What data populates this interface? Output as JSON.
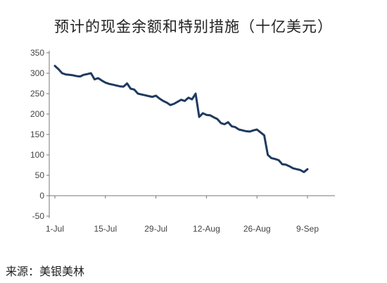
{
  "title": "预计的现金余额和特别措施（十亿美元）",
  "source": "来源：美银美林",
  "chart_data": {
    "type": "line",
    "title": "预计的现金余额和特别措施（十亿美元）",
    "xlabel": "",
    "ylabel": "",
    "x_tick_labels": [
      "1-Jul",
      "15-Jul",
      "29-Jul",
      "12-Aug",
      "26-Aug",
      "9-Sep"
    ],
    "y_ticks": [
      350,
      300,
      250,
      200,
      150,
      100,
      50,
      0,
      -50
    ],
    "ylim": [
      -50,
      350
    ],
    "grid": false,
    "legend": "none",
    "line_color": "#1f3a5f",
    "series": [
      {
        "name": "",
        "x": [
          "1-Jul",
          "2-Jul",
          "3-Jul",
          "4-Jul",
          "5-Jul",
          "6-Jul",
          "7-Jul",
          "8-Jul",
          "9-Jul",
          "10-Jul",
          "11-Jul",
          "12-Jul",
          "13-Jul",
          "14-Jul",
          "15-Jul",
          "16-Jul",
          "17-Jul",
          "18-Jul",
          "19-Jul",
          "20-Jul",
          "21-Jul",
          "22-Jul",
          "23-Jul",
          "24-Jul",
          "25-Jul",
          "26-Jul",
          "27-Jul",
          "28-Jul",
          "29-Jul",
          "30-Jul",
          "31-Jul",
          "1-Aug",
          "2-Aug",
          "3-Aug",
          "4-Aug",
          "5-Aug",
          "6-Aug",
          "7-Aug",
          "8-Aug",
          "9-Aug",
          "10-Aug",
          "11-Aug",
          "12-Aug",
          "13-Aug",
          "14-Aug",
          "15-Aug",
          "16-Aug",
          "17-Aug",
          "18-Aug",
          "19-Aug",
          "20-Aug",
          "21-Aug",
          "22-Aug",
          "23-Aug",
          "24-Aug",
          "25-Aug",
          "26-Aug",
          "27-Aug",
          "28-Aug",
          "29-Aug",
          "30-Aug",
          "31-Aug",
          "1-Sep",
          "2-Sep",
          "3-Sep",
          "4-Sep",
          "5-Sep",
          "6-Sep",
          "7-Sep",
          "8-Sep",
          "9-Sep"
        ],
        "values": [
          318,
          310,
          300,
          297,
          296,
          295,
          293,
          292,
          296,
          298,
          300,
          285,
          288,
          282,
          277,
          274,
          272,
          270,
          268,
          267,
          275,
          262,
          260,
          250,
          248,
          246,
          244,
          242,
          245,
          238,
          232,
          228,
          222,
          225,
          230,
          235,
          232,
          240,
          236,
          250,
          193,
          202,
          198,
          197,
          192,
          188,
          178,
          175,
          180,
          170,
          168,
          162,
          160,
          158,
          157,
          160,
          162,
          155,
          148,
          100,
          92,
          90,
          87,
          77,
          76,
          72,
          67,
          65,
          63,
          58,
          65
        ]
      }
    ]
  }
}
